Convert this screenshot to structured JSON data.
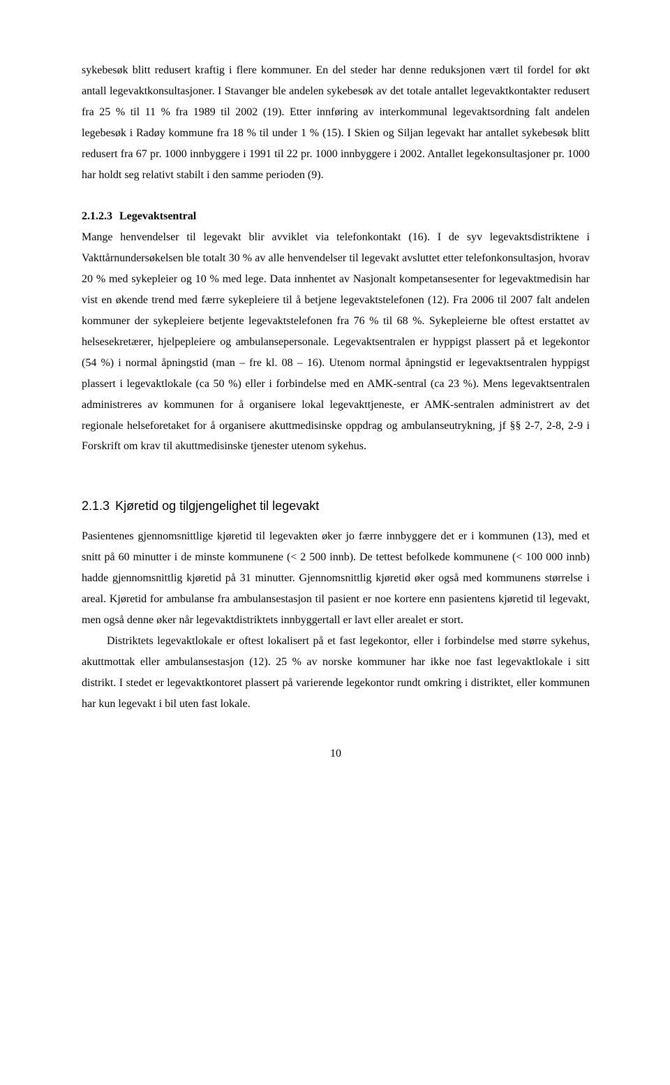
{
  "p1": "sykebesøk blitt redusert kraftig i flere kommuner. En del steder har denne reduksjonen vært til fordel for økt antall legevaktkonsultasjoner. I Stavanger ble andelen sykebesøk av det totale antallet legevaktkontakter redusert fra 25 % til 11 % fra 1989 til 2002 (19). Etter innføring av interkommunal legevaktsordning falt andelen legebesøk i Radøy kommune fra 18 % til under 1 % (15). I Skien og Siljan legevakt har antallet sykebesøk blitt redusert fra 67 pr. 1000 innbyggere i 1991 til 22 pr. 1000 innbyggere i 2002. Antallet legekonsultasjoner pr. 1000 har holdt seg relativt stabilt i den samme perioden (9).",
  "h3": {
    "num": "2.1.2.3",
    "title": "Legevaktsentral"
  },
  "p2": "Mange henvendelser til legevakt blir avviklet via telefonkontakt (16). I de syv legevaktsdistriktene i Vakttårnundersøkelsen ble totalt 30 % av alle henvendelser til legevakt avsluttet etter telefonkonsultasjon, hvorav 20 % med sykepleier og 10 % med lege. Data innhentet av Nasjonalt kompetansesenter for legevaktmedisin har vist en økende trend med færre sykepleiere til å betjene legevaktstelefonen (12). Fra 2006 til 2007 falt andelen kommuner der sykepleiere betjente legevaktstelefonen fra 76 % til 68 %. Sykepleierne ble oftest erstattet av helsesekretærer, hjelpepleiere og ambulansepersonale. Legevaktsentralen er hyppigst plassert på et legekontor (54 %) i normal åpningstid (man – fre kl. 08 – 16). Utenom normal åpningstid er legevaktsentralen hyppigst plassert i legevaktlokale (ca 50 %) eller i forbindelse med en AMK-sentral (ca 23 %). Mens legevaktsentralen administreres av kommunen for å organisere lokal legevakttjeneste, er AMK-sentralen administrert av det regionale helseforetaket for å organisere akuttmedisinske oppdrag og ambulanseutrykning, jf §§ 2-7, 2-8, 2-9 i Forskrift om krav til akuttmedisinske tjenester utenom sykehus.",
  "h2": {
    "num": "2.1.3",
    "title": "Kjøretid og tilgjengelighet til legevakt"
  },
  "p3": "Pasientenes gjennomsnittlige kjøretid til legevakten øker jo færre innbyggere det er i kommunen (13), med et snitt på 60 minutter i de minste kommunene (< 2 500 innb). De tettest befolkede kommunene (< 100 000 innb) hadde gjennomsnittlig kjøretid på 31 minutter. Gjennomsnittlig kjøretid øker også med kommunens størrelse i areal. Kjøretid for ambulanse fra ambulansestasjon til pasient er noe kortere enn pasientens kjøretid til legevakt, men også denne øker når legevaktdistriktets innbyggertall er lavt eller arealet er stort.",
  "p4": "Distriktets legevaktlokale er oftest lokalisert på et fast legekontor, eller i forbindelse med større sykehus, akuttmottak eller ambulansestasjon (12). 25 % av norske kommuner har ikke noe fast legevaktlokale i sitt distrikt. I stedet er legevaktkontoret plassert på varierende legekontor rundt omkring i distriktet, eller kommunen har kun legevakt i bil uten fast lokale.",
  "pagenum": "10"
}
